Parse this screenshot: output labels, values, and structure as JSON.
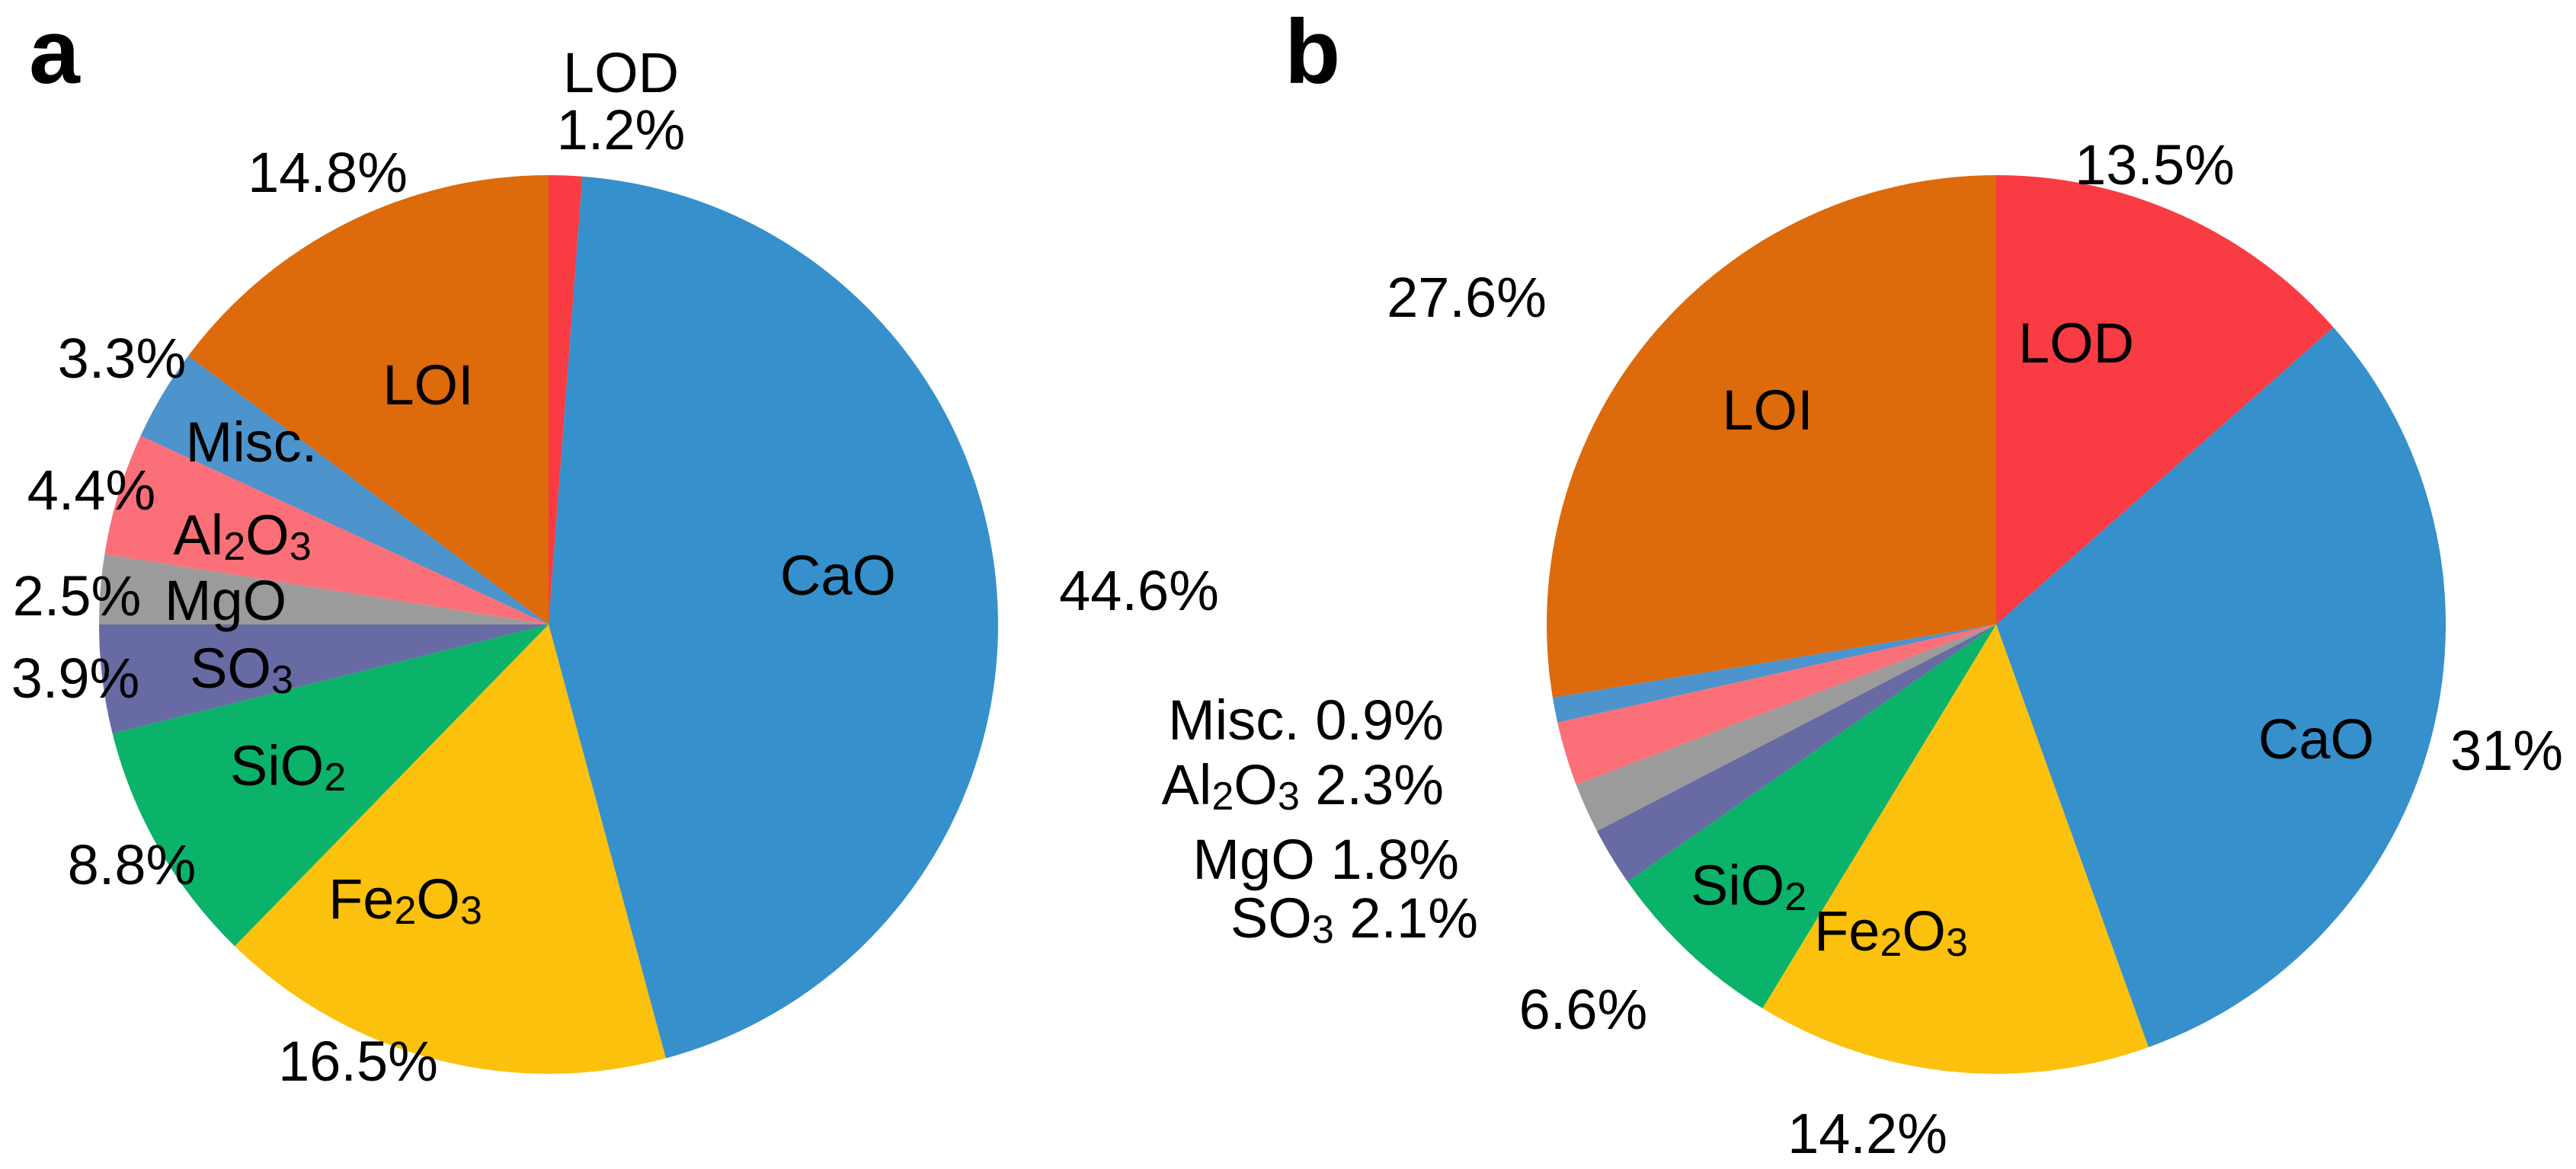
{
  "figure": {
    "background": "#ffffff",
    "panels": [
      {
        "id": "a",
        "panel_label": "a"
      },
      {
        "id": "b",
        "panel_label": "b"
      }
    ]
  },
  "chart_data": [
    {
      "type": "pie",
      "panel": "a",
      "title": "",
      "unit": "%",
      "total_pct": 100,
      "start_angle_deg": 0,
      "direction": "clockwise",
      "slices": [
        {
          "label": "LOD",
          "label_markup": "LOD",
          "value_pct": 1.2,
          "pct_label": "1.2%",
          "color": "#F93B43"
        },
        {
          "label": "CaO",
          "label_markup": "CaO",
          "value_pct": 44.6,
          "pct_label": "44.6%",
          "color": "#3590CB"
        },
        {
          "label": "Fe2O3",
          "label_markup": "Fe_2O_3",
          "value_pct": 16.5,
          "pct_label": "16.5%",
          "color": "#FCC10D"
        },
        {
          "label": "SiO2",
          "label_markup": "SiO_2",
          "value_pct": 8.8,
          "pct_label": "8.8%",
          "color": "#0BB269"
        },
        {
          "label": "SO3",
          "label_markup": "SO_3",
          "value_pct": 3.9,
          "pct_label": "3.9%",
          "color": "#686AA3"
        },
        {
          "label": "MgO",
          "label_markup": "MgO",
          "value_pct": 2.5,
          "pct_label": "2.5%",
          "color": "#9B9B9B"
        },
        {
          "label": "Al2O3",
          "label_markup": "Al_2O_3",
          "value_pct": 4.4,
          "pct_label": "4.4%",
          "color": "#FB6F79"
        },
        {
          "label": "Misc.",
          "label_markup": "Misc.",
          "value_pct": 3.3,
          "pct_label": "3.3%",
          "color": "#4D93CC"
        },
        {
          "label": "LOI",
          "label_markup": "LOI",
          "value_pct": 14.8,
          "pct_label": "14.8%",
          "color": "#DD6A0B"
        }
      ]
    },
    {
      "type": "pie",
      "panel": "b",
      "title": "",
      "unit": "%",
      "total_pct": 100,
      "start_angle_deg": 0,
      "direction": "clockwise",
      "slices": [
        {
          "label": "LOD",
          "label_markup": "LOD",
          "value_pct": 13.5,
          "pct_label": "13.5%",
          "color": "#F93B43"
        },
        {
          "label": "CaO",
          "label_markup": "CaO",
          "value_pct": 31,
          "pct_label": "31%",
          "color": "#3590CB"
        },
        {
          "label": "Fe2O3",
          "label_markup": "Fe_2O_3",
          "value_pct": 14.2,
          "pct_label": "14.2%",
          "color": "#FCC10D"
        },
        {
          "label": "SiO2",
          "label_markup": "SiO_2",
          "value_pct": 6.6,
          "pct_label": "6.6%",
          "color": "#0BB269"
        },
        {
          "label": "SO3",
          "label_markup": "SO_3",
          "value_pct": 2.1,
          "pct_label": "2.1%",
          "color": "#686AA3"
        },
        {
          "label": "MgO",
          "label_markup": "MgO",
          "value_pct": 1.8,
          "pct_label": "1.8%",
          "color": "#9B9B9B"
        },
        {
          "label": "Al2O3",
          "label_markup": "Al_2O_3",
          "value_pct": 2.3,
          "pct_label": "2.3%",
          "color": "#FB6F79"
        },
        {
          "label": "Misc.",
          "label_markup": "Misc.",
          "value_pct": 0.9,
          "pct_label": "0.9%",
          "color": "#4D93CC"
        },
        {
          "label": "LOI",
          "label_markup": "LOI",
          "value_pct": 27.6,
          "pct_label": "27.6%",
          "color": "#DD6A0B"
        }
      ]
    }
  ]
}
